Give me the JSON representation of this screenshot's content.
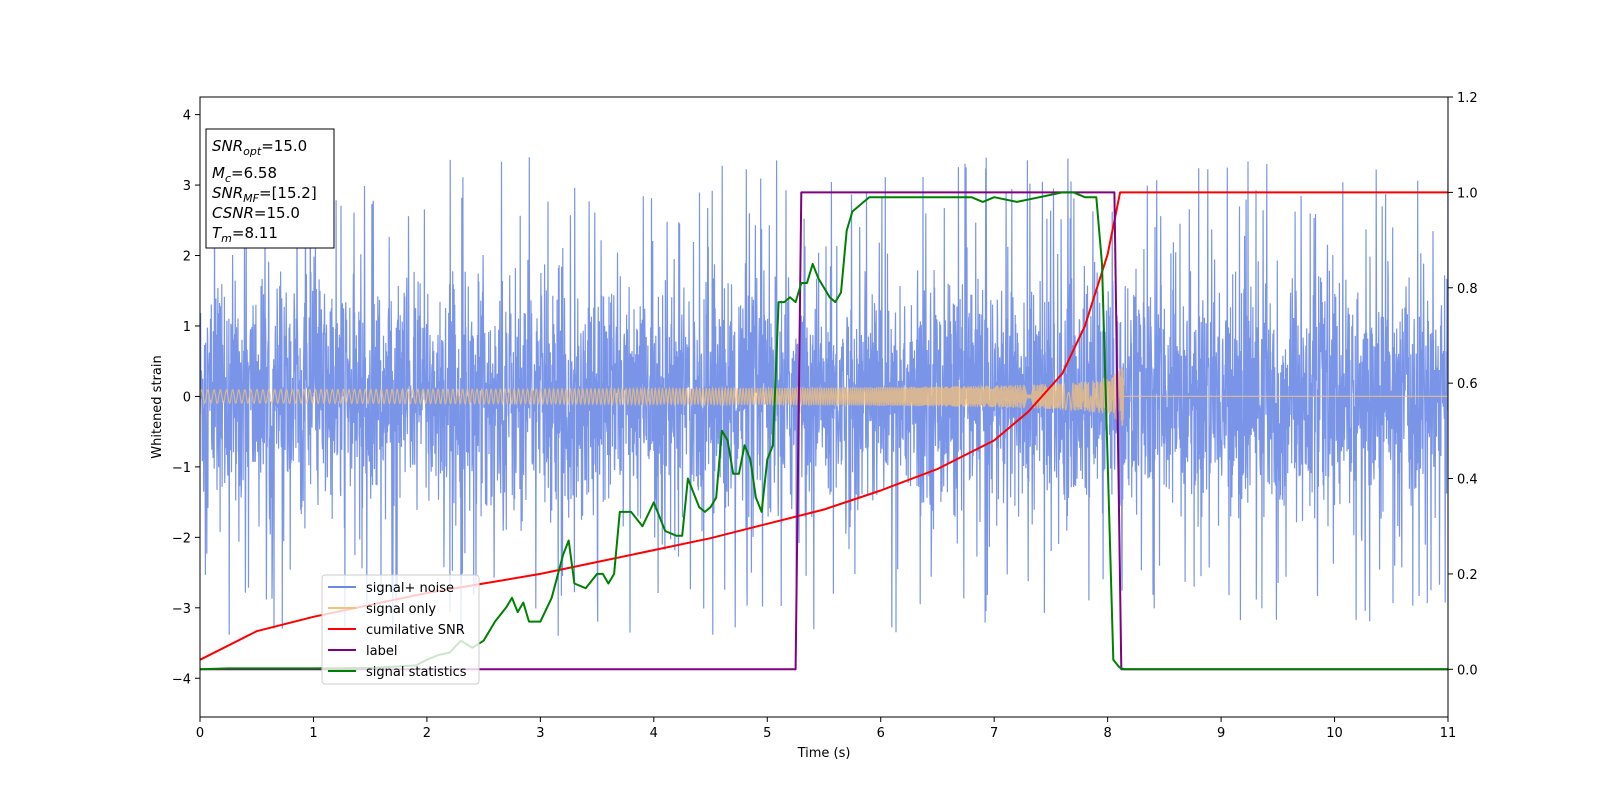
{
  "chart_data": {
    "type": "line",
    "xlabel": "Time (s)",
    "ylabel": "Whitened strain",
    "xlim": [
      0,
      11
    ],
    "ylim_left": [
      -4.55,
      4.25
    ],
    "ylim_right": [
      -0.1,
      1.2
    ],
    "x_ticks": [
      0,
      1,
      2,
      3,
      4,
      5,
      6,
      7,
      8,
      9,
      10,
      11
    ],
    "y_ticks_left": [
      -4,
      -3,
      -2,
      -1,
      0,
      1,
      2,
      3,
      4
    ],
    "y_ticks_right": [
      0.0,
      0.2,
      0.4,
      0.6,
      0.8,
      1.0,
      1.2
    ],
    "y_ticks_right_labels": [
      "0.0",
      "0.2",
      "0.4",
      "0.6",
      "0.8",
      "1.0",
      "1.2"
    ],
    "grid": false,
    "legend_position": "lower-left",
    "info_box": {
      "position": "upper-left",
      "lines": [
        {
          "sym": "SNR",
          "sub": "opt",
          "value": "=15.0"
        },
        {
          "sym": "M",
          "sub": "c",
          "value": "=6.58"
        },
        {
          "sym": "SNR",
          "sub": "MF",
          "value": "=[15.2]"
        },
        {
          "sym": "CSNR",
          "sub": "",
          "value": "=15.0"
        },
        {
          "sym": "T",
          "sub": "m",
          "value": "=8.11"
        }
      ]
    },
    "series": [
      {
        "name": "signal+ noise",
        "color": "#6b8ae6",
        "axis": "left",
        "description_values": {
          "noise_envelope_typical": 2.2,
          "noise_peak": 3.85,
          "noise_min": -4.15
        }
      },
      {
        "name": "signal only",
        "color": "#f5c27a",
        "axis": "left",
        "chirp": {
          "start_amplitude": 0.1,
          "peak_amplitude": 0.9,
          "merger_time": 8.11,
          "end_time": 8.14
        }
      },
      {
        "name": "cumilative SNR",
        "color": "#ff0000",
        "axis": "right",
        "x": [
          0,
          0.5,
          1,
          1.5,
          2,
          2.5,
          3,
          3.5,
          4,
          4.5,
          5,
          5.5,
          6,
          6.5,
          7,
          7.3,
          7.6,
          7.8,
          8.0,
          8.11,
          8.5,
          9,
          10,
          11
        ],
        "y": [
          0.02,
          0.08,
          0.11,
          0.135,
          0.16,
          0.18,
          0.2,
          0.225,
          0.25,
          0.275,
          0.305,
          0.335,
          0.375,
          0.42,
          0.48,
          0.54,
          0.62,
          0.72,
          0.87,
          1.0,
          1.0,
          1.0,
          1.0,
          1.0
        ]
      },
      {
        "name": "label",
        "color": "#800080",
        "axis": "right",
        "x": [
          0,
          5.25,
          5.3,
          8.06,
          8.12,
          11
        ],
        "y": [
          0,
          0,
          1,
          1,
          0,
          0
        ]
      },
      {
        "name": "signal statistics",
        "color": "#008000",
        "axis": "right",
        "x": [
          0,
          0.25,
          0.5,
          1,
          1.5,
          1.9,
          2.0,
          2.1,
          2.2,
          2.3,
          2.4,
          2.5,
          2.6,
          2.7,
          2.75,
          2.8,
          2.85,
          2.9,
          3.0,
          3.1,
          3.2,
          3.25,
          3.3,
          3.4,
          3.5,
          3.55,
          3.6,
          3.65,
          3.7,
          3.8,
          3.9,
          4.0,
          4.1,
          4.2,
          4.25,
          4.3,
          4.35,
          4.4,
          4.45,
          4.5,
          4.55,
          4.6,
          4.65,
          4.7,
          4.75,
          4.8,
          4.85,
          4.9,
          4.95,
          5.0,
          5.05,
          5.1,
          5.15,
          5.2,
          5.25,
          5.3,
          5.35,
          5.4,
          5.45,
          5.5,
          5.55,
          5.6,
          5.65,
          5.7,
          5.75,
          5.8,
          5.85,
          5.9,
          6.0,
          6.2,
          6.4,
          6.6,
          6.8,
          6.9,
          7.0,
          7.2,
          7.4,
          7.6,
          7.7,
          7.8,
          7.9,
          7.95,
          8.0,
          8.05,
          8.1,
          8.12,
          8.15,
          8.3,
          8.5,
          9,
          10,
          11
        ],
        "y": [
          0.0,
          0.002,
          0.002,
          0.002,
          0.003,
          0.008,
          0.02,
          0.03,
          0.035,
          0.06,
          0.045,
          0.06,
          0.1,
          0.13,
          0.15,
          0.12,
          0.14,
          0.1,
          0.1,
          0.15,
          0.24,
          0.27,
          0.18,
          0.17,
          0.2,
          0.2,
          0.18,
          0.2,
          0.33,
          0.33,
          0.3,
          0.35,
          0.29,
          0.28,
          0.28,
          0.4,
          0.37,
          0.34,
          0.33,
          0.34,
          0.36,
          0.5,
          0.48,
          0.41,
          0.41,
          0.47,
          0.44,
          0.36,
          0.33,
          0.44,
          0.47,
          0.77,
          0.77,
          0.78,
          0.77,
          0.81,
          0.81,
          0.85,
          0.82,
          0.8,
          0.78,
          0.77,
          0.79,
          0.92,
          0.96,
          0.97,
          0.98,
          0.99,
          0.99,
          0.99,
          0.99,
          0.99,
          0.99,
          0.98,
          0.99,
          0.98,
          0.99,
          1.0,
          1.0,
          0.99,
          0.99,
          0.85,
          0.44,
          0.02,
          0.005,
          0.002,
          0.0,
          0.0,
          0.0,
          0.0,
          0.0,
          0.0
        ]
      }
    ]
  }
}
